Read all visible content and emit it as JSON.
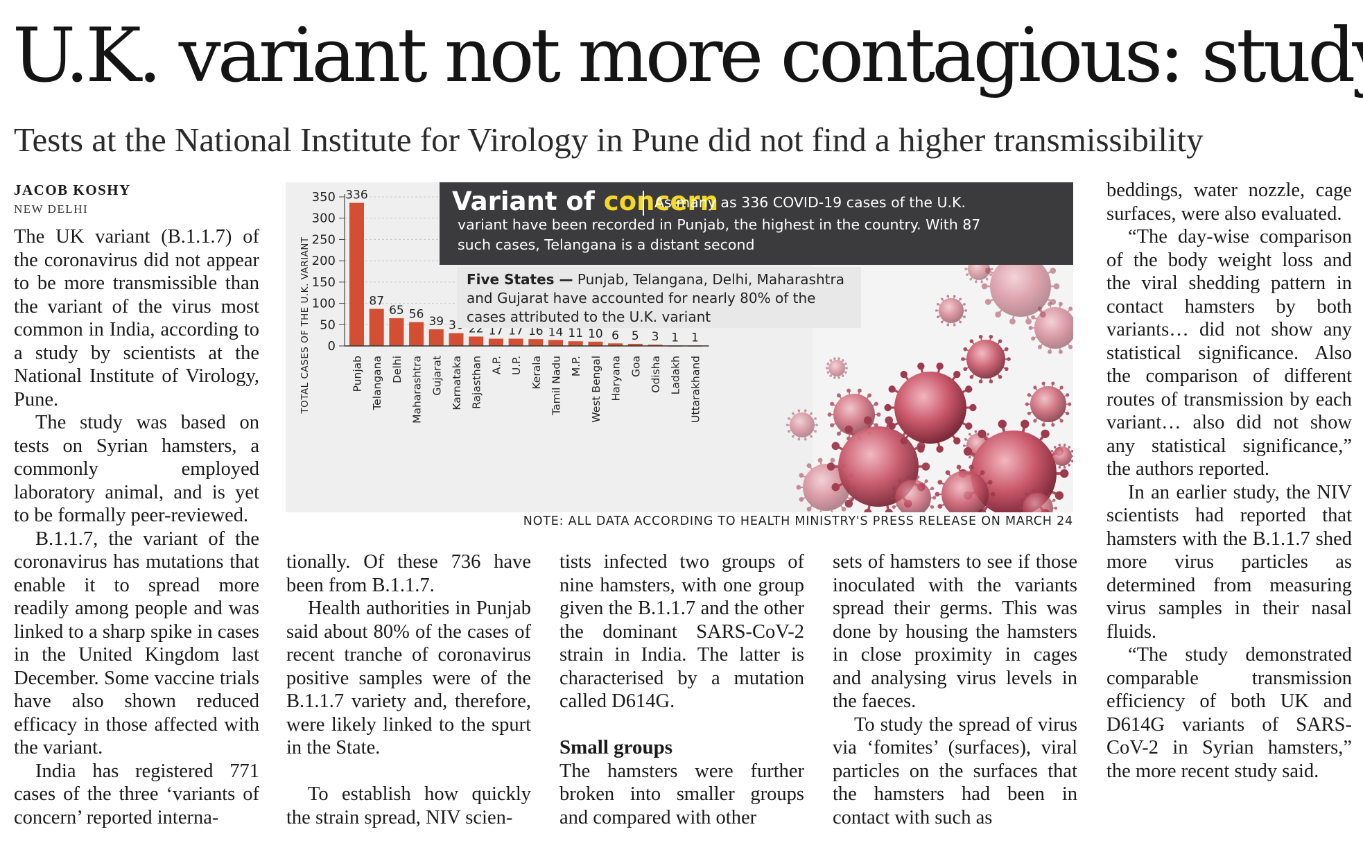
{
  "headline": "U.K. variant not more contagious: study",
  "subhead": "Tests at the National Institute for Virology in Pune did not find a higher transmissibility",
  "byline": "JACOB KOSHY",
  "dateline": "NEW DELHI",
  "graphic": {
    "title_main": "Variant of ",
    "title_accent": "concern",
    "lede_line1": "As many as 336 COVID-19 cases of the U.K.",
    "lede_line2": "variant have been recorded in Punjab, the highest in the country. With 87",
    "lede_line3": "such cases, Telangana is a distant second",
    "box_label": "Five States —",
    "box_line1": " Punjab, Telangana, Delhi, Maharashtra",
    "box_line2": "and Gujarat have accounted for nearly 80% of the",
    "box_line3": "cases attributed to the U.K. variant",
    "note": "NOTE: ALL DATA ACCORDING TO HEALTH MINISTRY'S PRESS RELEASE ON MARCH 24",
    "colors": {
      "bar": "#d24f33",
      "panel": "#3b3b3d",
      "accent": "#f5d823",
      "virus": "#c24a5e"
    }
  },
  "chart_data": {
    "type": "bar",
    "title": "",
    "xlabel": "",
    "ylabel": "TOTAL CASES OF THE U.K. VARIANT",
    "ylim": [
      0,
      350
    ],
    "yticks": [
      0,
      50,
      100,
      150,
      200,
      250,
      300,
      350
    ],
    "categories": [
      "Punjab",
      "Telangana",
      "Delhi",
      "Maharashtra",
      "Gujarat",
      "Karnataka",
      "Rajasthan",
      "A.P.",
      "U.P.",
      "Kerala",
      "Tamil Nadu",
      "M.P.",
      "West Bengal",
      "Haryana",
      "Goa",
      "Odisha",
      "Ladakh",
      "Uttarakhand"
    ],
    "values": [
      336,
      87,
      65,
      56,
      39,
      30,
      22,
      17,
      17,
      16,
      14,
      11,
      10,
      6,
      5,
      3,
      1,
      1
    ],
    "grid": true
  },
  "body": {
    "col1": [
      "The UK variant (B.1.1.7) of the coronavirus did not appear to be more transmissible than the variant of the virus most common in India, according to a study by scientists at the National Institute of Virology, Pune.",
      "The study was based on tests on Syrian hamsters, a commonly employed laboratory animal, and is yet to be formally peer-reviewed.",
      "B.1.1.7, the variant of the coronavirus has mutations that enable it to spread more readily among people and was linked to a sharp spike in cases in the United Kingdom last December. Some vaccine trials have also shown reduced efficacy in those affected with the variant.",
      "India has registered 771 cases of the three ‘variants of concern’ reported interna-"
    ],
    "col2": [
      "tionally. Of these 736 have been from B.1.1.7.",
      "Health authorities in Punjab said about 80% of the cases of recent tranche of coronavirus positive samples were of the B.1.1.7 variety and, therefore, were likely linked to the spurt in the State.",
      "To establish how quickly the strain spread, NIV scien-"
    ],
    "col3": [
      "tists infected two groups of nine hamsters, with one group given the B.1.1.7 and the other the dominant SARS-CoV-2 strain in India. The latter is characterised by a mutation called D614G.",
      "The hamsters were further broken into smaller groups and compared with other"
    ],
    "col3_subhead": "Small groups",
    "col4": [
      "sets of hamsters to see if those inoculated with the variants spread their germs. This was done by housing the hamsters in close proximity in cages and analysing virus levels in the faeces.",
      "To study the spread of virus via ‘fomites’ (surfaces), viral particles on the surfaces that the hamsters had been in contact with such as"
    ],
    "col5": [
      "beddings, water nozzle, cage surfaces, were also evaluated.",
      "“The day-wise comparison of the body weight loss and the viral shedding pattern in contact hamsters by both variants… did not show any statistical significance. Also the comparison of different routes of transmission by each variant… also did not show any statistical significance,” the authors reported.",
      "In an earlier study, the NIV scientists had reported that hamsters with the B.1.1.7 shed more virus particles as determined from measuring virus samples in their nasal fluids.",
      "“The study demonstrated comparable transmission efficiency of both UK and D614G variants of SARS-CoV-2 in Syrian hamsters,” the more recent study said."
    ]
  }
}
